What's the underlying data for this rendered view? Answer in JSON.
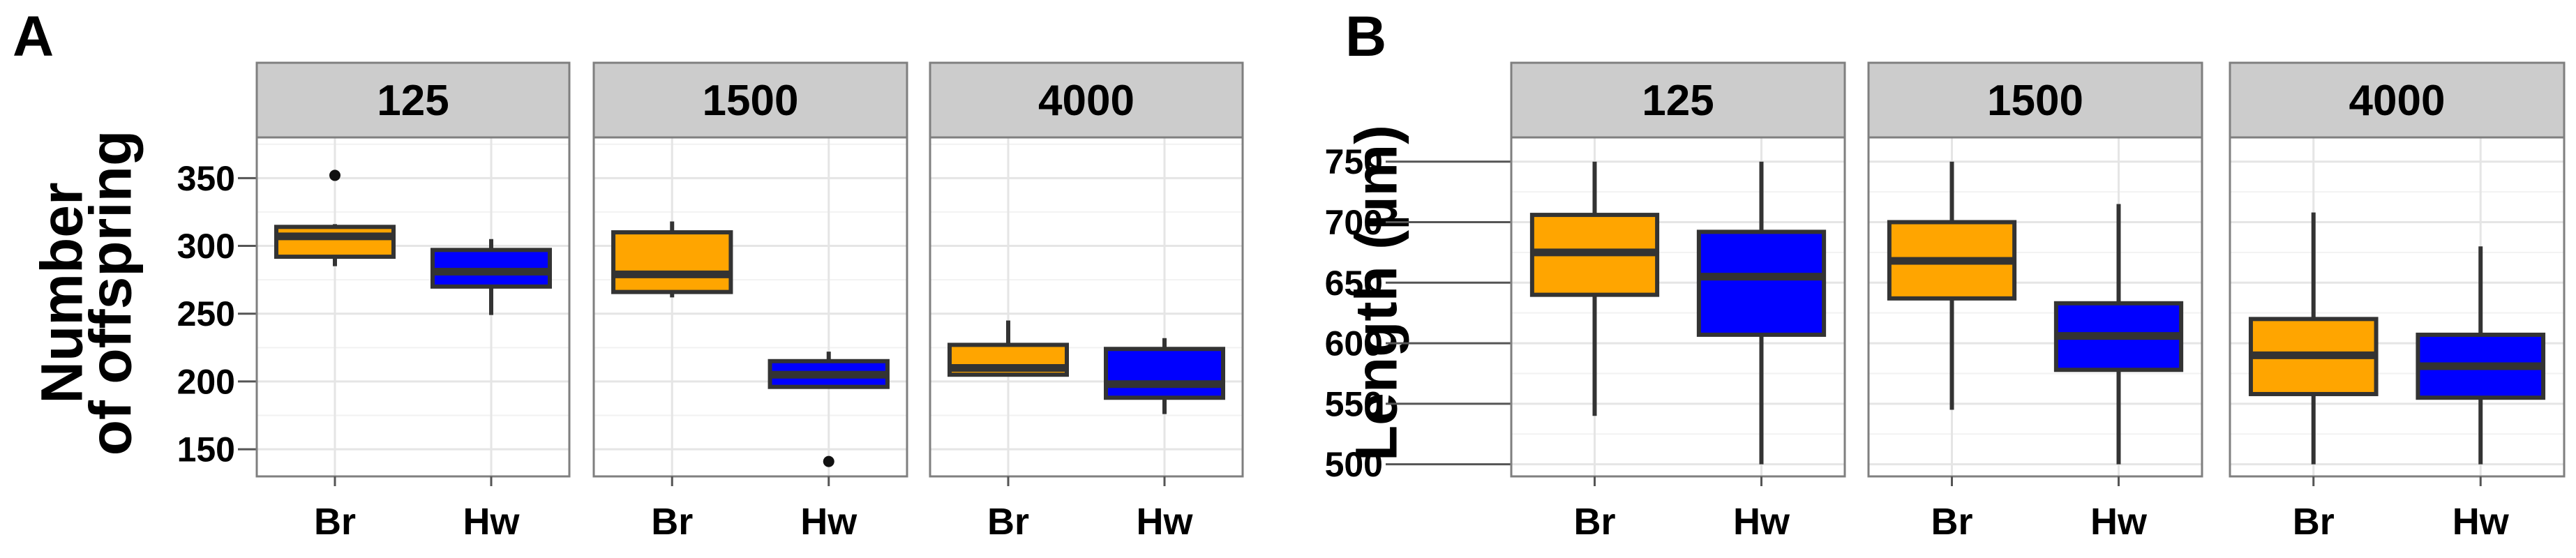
{
  "chart_data": [
    {
      "panel_label": "A",
      "type": "box",
      "ylabel": [
        "Number",
        "of offspring"
      ],
      "ylim": [
        130,
        380
      ],
      "yticks": [
        150,
        200,
        250,
        300,
        350
      ],
      "categories": [
        "Br",
        "Hw"
      ],
      "colors": {
        "Br": "#FFA500",
        "Hw": "#0000FF"
      },
      "facets": [
        {
          "label": "125",
          "boxes": [
            {
              "category": "Br",
              "whisker_low": 285,
              "q1": 292,
              "median": 307,
              "q3": 314,
              "whisker_high": 316,
              "outliers": [
                352
              ]
            },
            {
              "category": "Hw",
              "whisker_low": 249,
              "q1": 270,
              "median": 281,
              "q3": 297,
              "whisker_high": 305,
              "outliers": []
            }
          ]
        },
        {
          "label": "1500",
          "boxes": [
            {
              "category": "Br",
              "whisker_low": 262,
              "q1": 266,
              "median": 279,
              "q3": 310,
              "whisker_high": 318,
              "outliers": []
            },
            {
              "category": "Hw",
              "whisker_low": 196,
              "q1": 196,
              "median": 205,
              "q3": 215,
              "whisker_high": 222,
              "outliers": [
                141
              ]
            }
          ]
        },
        {
          "label": "4000",
          "boxes": [
            {
              "category": "Br",
              "whisker_low": 205,
              "q1": 205,
              "median": 210,
              "q3": 227,
              "whisker_high": 245,
              "outliers": []
            },
            {
              "category": "Hw",
              "whisker_low": 176,
              "q1": 188,
              "median": 198,
              "q3": 224,
              "whisker_high": 232,
              "outliers": []
            }
          ]
        }
      ]
    },
    {
      "panel_label": "B",
      "type": "box",
      "ylabel": [
        "Length (µm)"
      ],
      "ylim": [
        490,
        770
      ],
      "yticks": [
        500,
        550,
        600,
        650,
        700,
        750
      ],
      "categories": [
        "Br",
        "Hw"
      ],
      "colors": {
        "Br": "#FFA500",
        "Hw": "#0000FF"
      },
      "facets": [
        {
          "label": "125",
          "boxes": [
            {
              "category": "Br",
              "whisker_low": 540,
              "q1": 640,
              "median": 675,
              "q3": 706,
              "whisker_high": 750,
              "outliers": []
            },
            {
              "category": "Hw",
              "whisker_low": 500,
              "q1": 607,
              "median": 655,
              "q3": 692,
              "whisker_high": 750,
              "outliers": []
            }
          ]
        },
        {
          "label": "1500",
          "boxes": [
            {
              "category": "Br",
              "whisker_low": 545,
              "q1": 637,
              "median": 668,
              "q3": 700,
              "whisker_high": 750,
              "outliers": []
            },
            {
              "category": "Hw",
              "whisker_low": 500,
              "q1": 578,
              "median": 606,
              "q3": 633,
              "whisker_high": 715,
              "outliers": []
            }
          ]
        },
        {
          "label": "4000",
          "boxes": [
            {
              "category": "Br",
              "whisker_low": 500,
              "q1": 558,
              "median": 590,
              "q3": 620,
              "whisker_high": 708,
              "outliers": []
            },
            {
              "category": "Hw",
              "whisker_low": 500,
              "q1": 555,
              "median": 581,
              "q3": 607,
              "whisker_high": 680,
              "outliers": []
            }
          ]
        }
      ]
    }
  ]
}
